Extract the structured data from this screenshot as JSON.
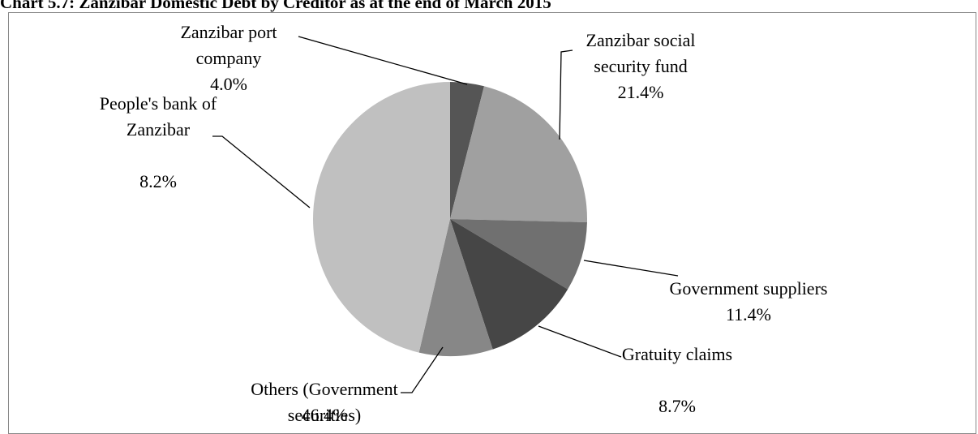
{
  "chart_data": {
    "type": "pie",
    "title": "Chart 5.7: Zanzibar Domestic Debt by Creditor as at the end of March 2015",
    "categories": [
      "Zanzibar port company",
      "Zanzibar social security fund",
      "People's bank of Zanzibar",
      "Government suppliers",
      "Gratuity claims",
      "Others (Government securities)"
    ],
    "values": [
      4.0,
      21.4,
      8.2,
      11.4,
      8.7,
      46.4
    ],
    "value_labels": [
      "4.0%",
      "21.4%",
      "8.2%",
      "11.4%",
      "8.7%",
      "46.4%"
    ],
    "colors": [
      "#555555",
      "#a0a0a0",
      "#707070",
      "#464646",
      "#878787",
      "#c0c0c0"
    ]
  }
}
